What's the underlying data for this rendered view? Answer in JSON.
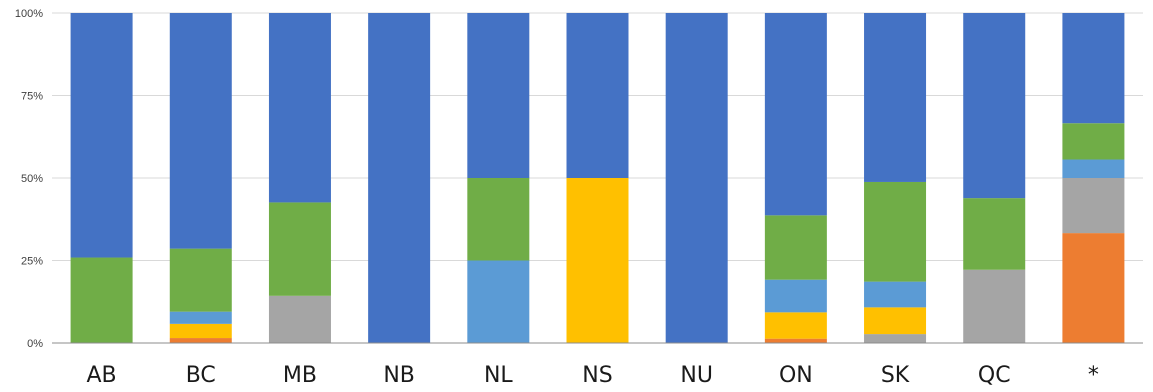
{
  "chart_data": {
    "type": "bar",
    "stacked": true,
    "normalized": true,
    "categories": [
      "AB",
      "BC",
      "MB",
      "NB",
      "NL",
      "NS",
      "NU",
      "ON",
      "SK",
      "QC",
      "*"
    ],
    "y_ticks": [
      "0%",
      "25%",
      "50%",
      "75%",
      "100%"
    ],
    "ylim": [
      0,
      100
    ],
    "grid": true,
    "legend": "none",
    "series": [
      {
        "color": "#ED7D31",
        "values": [
          0,
          1.5,
          0,
          0,
          0,
          0,
          0,
          1.3,
          0,
          0,
          33.3
        ]
      },
      {
        "color": "#A5A5A5",
        "values": [
          0,
          0,
          14.3,
          0,
          0,
          0,
          0,
          0,
          2.7,
          22.2,
          16.7
        ]
      },
      {
        "color": "#FFC000",
        "values": [
          0,
          4.3,
          0,
          0,
          0,
          50,
          0,
          7.9,
          8.1,
          0,
          0
        ]
      },
      {
        "color": "#5B9BD5",
        "values": [
          0,
          3.7,
          0,
          0,
          25,
          0,
          0,
          9.8,
          7.8,
          0,
          5.6
        ]
      },
      {
        "color": "#70AD47",
        "values": [
          25.9,
          19.1,
          28.3,
          0,
          25,
          0,
          0,
          19.3,
          30.2,
          21.7,
          11.0
        ]
      },
      {
        "color": "#4472C4",
        "values": [
          74.1,
          71.4,
          57.4,
          100,
          50,
          50,
          100,
          60.7,
          51.2,
          56.1,
          33.4
        ]
      }
    ]
  }
}
